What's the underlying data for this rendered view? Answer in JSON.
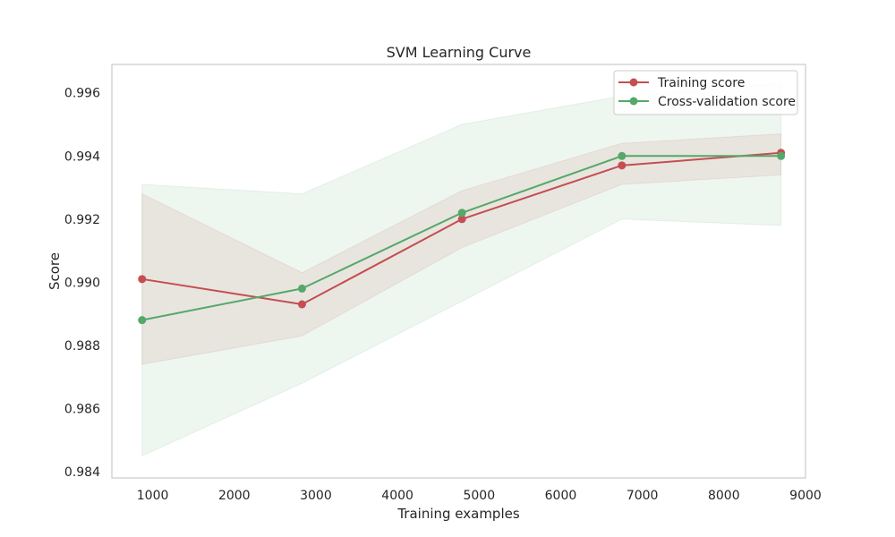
{
  "chart_data": {
    "type": "line",
    "title": "SVM Learning Curve",
    "xlabel": "Training examples",
    "ylabel": "Score",
    "xlim": [
      500,
      9000
    ],
    "ylim": [
      0.9838,
      0.9969
    ],
    "xticks": [
      1000,
      2000,
      3000,
      4000,
      5000,
      6000,
      7000,
      8000,
      9000
    ],
    "yticks": [
      0.984,
      0.986,
      0.988,
      0.99,
      0.992,
      0.994,
      0.996
    ],
    "ytick_decimals": 3,
    "grid": false,
    "legend_position": "top-right",
    "x": [
      870,
      2830,
      4790,
      6750,
      8700
    ],
    "series": [
      {
        "name": "Training score",
        "color": "#c44e52",
        "values": [
          0.9901,
          0.9893,
          0.992,
          0.9937,
          0.9941
        ],
        "band_low": [
          0.9874,
          0.9883,
          0.9911,
          0.9931,
          0.9934
        ],
        "band_high": [
          0.9928,
          0.9903,
          0.9929,
          0.9944,
          0.9947
        ]
      },
      {
        "name": "Cross-validation score",
        "color": "#55a868",
        "values": [
          0.9888,
          0.9898,
          0.9922,
          0.994,
          0.994
        ],
        "band_low": [
          0.9845,
          0.9868,
          0.9894,
          0.992,
          0.9918
        ],
        "band_high": [
          0.9931,
          0.9928,
          0.995,
          0.9959,
          0.9963
        ]
      }
    ]
  }
}
